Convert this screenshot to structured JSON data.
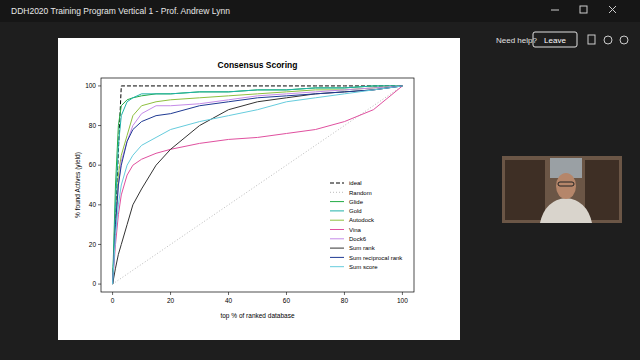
{
  "window": {
    "title": "DDH2020 Training Program Vertical 1 - Prof. Andrew Lynn",
    "help": "Need help?",
    "leave": "Leave"
  },
  "chart_data": {
    "type": "line",
    "title": "Consensus Scoring",
    "x_label": "top % of ranked database",
    "y_label": "% found Actives (yield)",
    "x": [
      0,
      1,
      2,
      3,
      5,
      7,
      10,
      15,
      20,
      30,
      40,
      50,
      60,
      70,
      80,
      90,
      100
    ],
    "xlim": [
      -4,
      104
    ],
    "ylim": [
      -4,
      104
    ],
    "xticks": [
      0,
      20,
      40,
      60,
      80,
      100
    ],
    "yticks": [
      0,
      20,
      40,
      60,
      80,
      100
    ],
    "grid": false,
    "legend": "right",
    "series": [
      {
        "name": "ideal",
        "color": "#000000",
        "line_style": "dashed",
        "values": [
          0,
          33,
          67,
          100,
          100,
          100,
          100,
          100,
          100,
          100,
          100,
          100,
          100,
          100,
          100,
          100,
          100
        ]
      },
      {
        "name": "Random",
        "color": "#bbbbbb",
        "line_style": "dotted",
        "values": [
          0,
          1,
          2,
          3,
          5,
          7,
          10,
          15,
          20,
          30,
          40,
          50,
          60,
          70,
          80,
          90,
          100
        ]
      },
      {
        "name": "Glide",
        "color": "#22aa44",
        "line_style": "solid",
        "values": [
          0,
          50,
          80,
          90,
          93,
          94,
          95,
          96,
          96,
          97,
          97,
          98,
          98,
          99,
          99,
          100,
          100
        ]
      },
      {
        "name": "Gold",
        "color": "#20b2aa",
        "line_style": "solid",
        "values": [
          0,
          40,
          70,
          85,
          92,
          94,
          96,
          96,
          96,
          97,
          97,
          98,
          98,
          99,
          99,
          100,
          100
        ]
      },
      {
        "name": "Autodock",
        "color": "#8fbf3f",
        "line_style": "solid",
        "values": [
          0,
          30,
          55,
          65,
          75,
          85,
          90,
          92,
          93,
          94,
          95,
          96,
          97,
          98,
          98,
          99,
          100
        ]
      },
      {
        "name": "Vina",
        "color": "#e0509f",
        "line_style": "solid",
        "values": [
          0,
          20,
          35,
          45,
          55,
          60,
          63,
          66,
          68,
          71,
          73,
          74,
          76,
          78,
          82,
          88,
          100
        ]
      },
      {
        "name": "Dock6",
        "color": "#c58be8",
        "line_style": "solid",
        "values": [
          0,
          25,
          50,
          62,
          72,
          80,
          86,
          90,
          90,
          91,
          93,
          95,
          96,
          97,
          98,
          99,
          100
        ]
      },
      {
        "name": "Sum rank",
        "color": "#333333",
        "line_style": "solid",
        "values": [
          0,
          8,
          15,
          20,
          30,
          40,
          48,
          60,
          68,
          80,
          88,
          92,
          94,
          96,
          97,
          98,
          100
        ]
      },
      {
        "name": "Sum reciprocal rank",
        "color": "#1f3a93",
        "line_style": "solid",
        "values": [
          0,
          30,
          50,
          60,
          72,
          78,
          82,
          85,
          86,
          90,
          92,
          94,
          95,
          96,
          97,
          98,
          100
        ]
      },
      {
        "name": "Sum score",
        "color": "#66ccdd",
        "line_style": "solid",
        "values": [
          0,
          25,
          40,
          50,
          60,
          65,
          70,
          74,
          78,
          82,
          85,
          88,
          92,
          94,
          96,
          98,
          100
        ]
      }
    ]
  }
}
